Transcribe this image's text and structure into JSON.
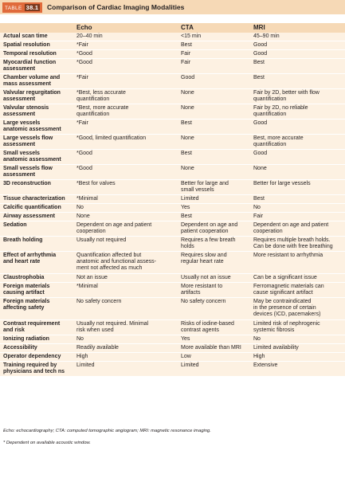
{
  "table": {
    "tag": "TABLE",
    "number": "38.1",
    "title": "Comparison of Cardiac Imaging Modalities",
    "columns": [
      "",
      "Echo",
      "CTA",
      "MRI"
    ],
    "rows": [
      [
        "Actual scan time",
        "20–40 min",
        "<15 min",
        "45–90 min"
      ],
      [
        "Spatial resolution",
        "*Fair",
        "Best",
        "Good"
      ],
      [
        "Temporal resolution",
        "*Good",
        "Fair",
        "Good"
      ],
      [
        "Myocardial function\nassessment",
        "*Good",
        "Fair",
        "Best"
      ],
      [
        "Chamber volume and\nmass assessment",
        "*Fair",
        "Good",
        "Best"
      ],
      [
        "Valvular regurgitation\nassessment",
        "*Best, less accurate\nquantification",
        "None",
        "Fair by 2D, better with flow\nquantification"
      ],
      [
        "Valvular stenosis\nassessment",
        "*Best, more accurate\nquantification",
        "None",
        "Fair by 2D, no reliable\nquantification"
      ],
      [
        "Large vessels\nanatomic assessment",
        "*Fair",
        "Best",
        "Good"
      ],
      [
        "Large vessels flow\nassessment",
        "*Good, limited quantification",
        "None",
        "Best, more accurate\nquantification"
      ],
      [
        "Small vessels\nanatomic assessment",
        "*Good",
        "Best",
        "Good"
      ],
      [
        "Small vessels flow\nassessment",
        "*Good",
        "None",
        "None"
      ],
      [
        "3D reconstruction",
        "*Best for valves",
        "Better for large and\nsmall vessels",
        "Better for large vessels"
      ],
      [
        "Tissue characterization",
        "*Minimal",
        "Limited",
        "Best"
      ],
      [
        "Calcific quantification",
        "No",
        "Yes",
        "No"
      ],
      [
        "Airway assessment",
        "None",
        "Best",
        "Fair"
      ],
      [
        "Sedation",
        "Dependent on age and patient\ncooperation",
        "Dependent on age and\npatient cooperation",
        "Dependent on age and patient\ncooperation"
      ],
      [
        "Breath holding",
        "Usually not required",
        "Requires a few breath\nholds",
        "Requires multiple breath holds.\nCan be done with free breathing"
      ],
      [
        "Effect of arrhythmia\nand heart rate",
        "Quantification affected but\nanatomic and functional assess-\nment not affected as much",
        "Requires slow and\nregular heart rate",
        "More resistant to arrhythmia"
      ],
      [
        "Claustrophobia",
        "Not an issue",
        "Usually not an issue",
        "Can be a significant issue"
      ],
      [
        "Foreign materials\ncausing artifact",
        "*Minimal",
        "More resistant to\nartifacts",
        "Ferromagnetic materials can\ncause significant artifact"
      ],
      [
        "Foreign materials\naffecting safety",
        "No safety concern",
        "No safety concern",
        "May be contraindicated\nin the presence of certain\ndevices (ICD, pacemakers)"
      ],
      [
        "Contrast requirement\nand risk",
        "Usually not required. Minimal\nrisk when used",
        "Risks of iodine-based\ncontrast agents",
        "Limited risk of nephrogenic\nsystemic fibrosis"
      ],
      [
        "Ionizing radiation",
        "No",
        "Yes",
        "No"
      ],
      [
        "Accessibility",
        "Readily available",
        "More available than MRI",
        "Limited availability"
      ],
      [
        "Operator dependency",
        "High",
        "Low",
        "High"
      ],
      [
        "Training required by\nphysicians and tech ns",
        "Limited",
        "Limited",
        "Extensive"
      ]
    ]
  },
  "footnotes": [
    "Echo: echocardiography; CTA: computed tomographic angiogram; MRI: magnetic resonance imaging.",
    "* Dependent on available acoustic window."
  ]
}
